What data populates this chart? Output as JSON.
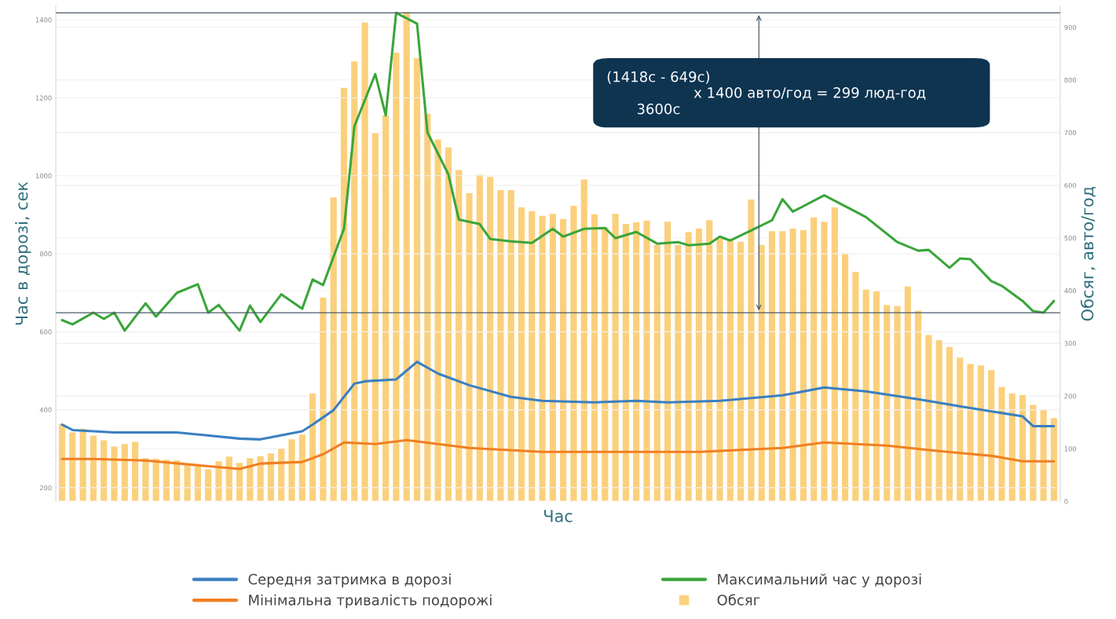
{
  "chart_data": {
    "type": "bar",
    "xlabel": "Час",
    "ylabel": "Час в дорозі, сек",
    "y2label": "Обсяг, авто/год",
    "categories": [
      null,
      null,
      null,
      null,
      null,
      null,
      null,
      null,
      null,
      null,
      null,
      null,
      null,
      null,
      null,
      null,
      null,
      null,
      null,
      null,
      null,
      null,
      null,
      null,
      null,
      null,
      null,
      null,
      null,
      null,
      null,
      null,
      null,
      null,
      null,
      null,
      null,
      null,
      null,
      null,
      null,
      null,
      null,
      null,
      null,
      null,
      null,
      null,
      null,
      null,
      null,
      null,
      null,
      null,
      null,
      null,
      null,
      null,
      null,
      null,
      null,
      null,
      null,
      null,
      null,
      null,
      null,
      null,
      null,
      null,
      null,
      null,
      null,
      null,
      null,
      null,
      null,
      null,
      null,
      null,
      null,
      null,
      null,
      null,
      null,
      null,
      null,
      null,
      null,
      null,
      null,
      null,
      null,
      null,
      null,
      null
    ],
    "series": [
      {
        "name": "Середня затримка в дорозі",
        "type": "line",
        "color": "#3a7fc1",
        "values": [
          362,
          348,
          null,
          null,
          null,
          342,
          null,
          null,
          342,
          null,
          null,
          342,
          null,
          null,
          null,
          null,
          null,
          326,
          null,
          324,
          null,
          null,
          null,
          345,
          362,
          null,
          399,
          null,
          467,
          473,
          null,
          null,
          478,
          null,
          523,
          null,
          493,
          null,
          null,
          463,
          null,
          null,
          null,
          433,
          null,
          null,
          423,
          null,
          null,
          null,
          null,
          419,
          null,
          null,
          null,
          423,
          null,
          null,
          419,
          null,
          null,
          null,
          null,
          423,
          null,
          null,
          null,
          null,
          null,
          437,
          null,
          null,
          null,
          457,
          null,
          null,
          null,
          447,
          null,
          null,
          null,
          null,
          427,
          null,
          null,
          null,
          409,
          null,
          null,
          null,
          null,
          null,
          383,
          358,
          null,
          358
        ]
      },
      {
        "name": "Мінімальна тривалість подорожі",
        "type": "line",
        "color": "#f07f22",
        "values": [
          274,
          null,
          null,
          274,
          null,
          null,
          null,
          null,
          270,
          null,
          null,
          null,
          null,
          null,
          null,
          null,
          null,
          248,
          null,
          262,
          null,
          null,
          null,
          266,
          null,
          286,
          null,
          316,
          null,
          null,
          312,
          null,
          null,
          322,
          null,
          null,
          null,
          null,
          null,
          302,
          null,
          null,
          null,
          null,
          null,
          null,
          292,
          null,
          null,
          null,
          null,
          null,
          null,
          null,
          292,
          null,
          null,
          null,
          null,
          null,
          null,
          292,
          null,
          null,
          null,
          null,
          null,
          null,
          null,
          302,
          null,
          null,
          null,
          316,
          null,
          null,
          null,
          null,
          null,
          308,
          null,
          null,
          null,
          null,
          294,
          null,
          null,
          null,
          null,
          282,
          null,
          null,
          268,
          null,
          null,
          268
        ]
      },
      {
        "name": "Максимальний час у дорозі",
        "type": "line",
        "color": "#3aa53a",
        "values": [
          630,
          619,
          null,
          649,
          633,
          649,
          603,
          null,
          673,
          639,
          null,
          700,
          null,
          722,
          649,
          669,
          null,
          603,
          667,
          625,
          null,
          696,
          null,
          659,
          734,
          720,
          null,
          864,
          1127,
          null,
          1261,
          1155,
          1418,
          null,
          1390,
          1111,
          null,
          1004,
          888,
          null,
          876,
          838,
          null,
          832,
          null,
          828,
          null,
          864,
          844,
          null,
          864,
          null,
          866,
          840,
          null,
          856,
          null,
          826,
          null,
          830,
          822,
          null,
          826,
          844,
          834,
          null,
          860,
          null,
          886,
          940,
          908,
          null,
          null,
          950,
          null,
          null,
          908,
          894,
          null,
          null,
          830,
          null,
          808,
          810,
          null,
          764,
          788,
          786,
          null,
          730,
          718,
          null,
          679,
          653,
          649,
          679
        ]
      },
      {
        "name": "Обсяг",
        "axis": "y2",
        "color": "#fbd07c",
        "values": [
          148,
          132,
          139,
          126,
          117,
          105,
          110,
          114,
          83,
          82,
          80,
          79,
          73,
          67,
          62,
          77,
          86,
          74,
          83,
          87,
          92,
          101,
          119,
          128,
          206,
          388,
          578,
          786,
          836,
          910,
          700,
          734,
          853,
          930,
          842,
          737,
          688,
          673,
          630,
          586,
          621,
          617,
          592,
          592,
          559,
          552,
          543,
          547,
          537,
          562,
          612,
          546,
          522,
          547,
          528,
          531,
          534,
          488,
          532,
          488,
          512,
          519,
          535,
          500,
          500,
          494,
          574,
          488,
          514,
          514,
          519,
          516,
          540,
          532,
          559,
          472,
          437,
          403,
          400,
          374,
          372,
          409,
          363,
          317,
          307,
          294,
          274,
          262,
          259,
          250,
          218,
          206,
          203,
          184,
          176,
          159
        ]
      }
    ],
    "ylim": [
      165,
      1435
    ],
    "yticks": [
      200,
      400,
      600,
      800,
      1000,
      1200,
      1400
    ],
    "y2lim": [
      0,
      940
    ],
    "y2ticks": [
      0,
      100,
      200,
      300,
      400,
      500,
      600,
      700,
      800,
      900
    ],
    "ref_lines": [
      {
        "axis": "y",
        "value": 1418,
        "color": "#4a5a68"
      },
      {
        "axis": "y",
        "value": 649,
        "color": "#4a5a68"
      }
    ],
    "annotations": [
      "(1418с - 649с)",
      "3600с",
      "x 1400 авто/год = 299 люд-год"
    ],
    "grid": true,
    "legend": "bottom"
  }
}
